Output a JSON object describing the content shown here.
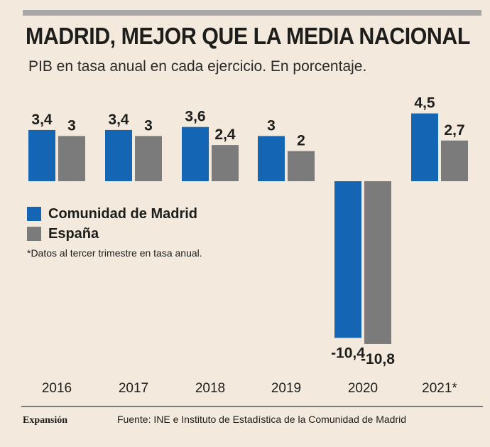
{
  "header": {
    "title": "MADRID, MEJOR QUE LA MEDIA NACIONAL",
    "subtitle": "PIB en tasa anual en cada ejercicio. En porcentaje."
  },
  "legend": [
    {
      "label": "Comunidad de Madrid",
      "color": "#1565b5"
    },
    {
      "label": "España",
      "color": "#7b7b7b"
    }
  ],
  "footnote": "*Datos al tercer trimestre en tasa anual.",
  "footer": {
    "brand": "Expansión",
    "source": "Fuente: INE e Instituto de Estadística de la Comunidad de Madrid"
  },
  "chart_data": {
    "type": "bar",
    "title": "MADRID, MEJOR QUE LA MEDIA NACIONAL",
    "subtitle": "PIB en tasa anual en cada ejercicio. En porcentaje.",
    "categories": [
      "2016",
      "2017",
      "2018",
      "2019",
      "2020",
      "2021*"
    ],
    "series": [
      {
        "name": "Comunidad de Madrid",
        "color": "#1565b5",
        "values": [
          3.4,
          3.4,
          3.6,
          3,
          -10.4,
          4.5
        ],
        "labels": [
          "3,4",
          "3,4",
          "3,6",
          "3",
          "-10,4",
          "4,5"
        ]
      },
      {
        "name": "España",
        "color": "#7b7b7b",
        "values": [
          3,
          3,
          2.4,
          2,
          -10.8,
          2.7
        ],
        "labels": [
          "3",
          "3",
          "2,4",
          "2",
          "-10,8",
          "2,7"
        ]
      }
    ],
    "ylim": [
      -10.8,
      4.5
    ],
    "xlabel": "",
    "ylabel": "",
    "legend_position": "left, below positive bars"
  }
}
